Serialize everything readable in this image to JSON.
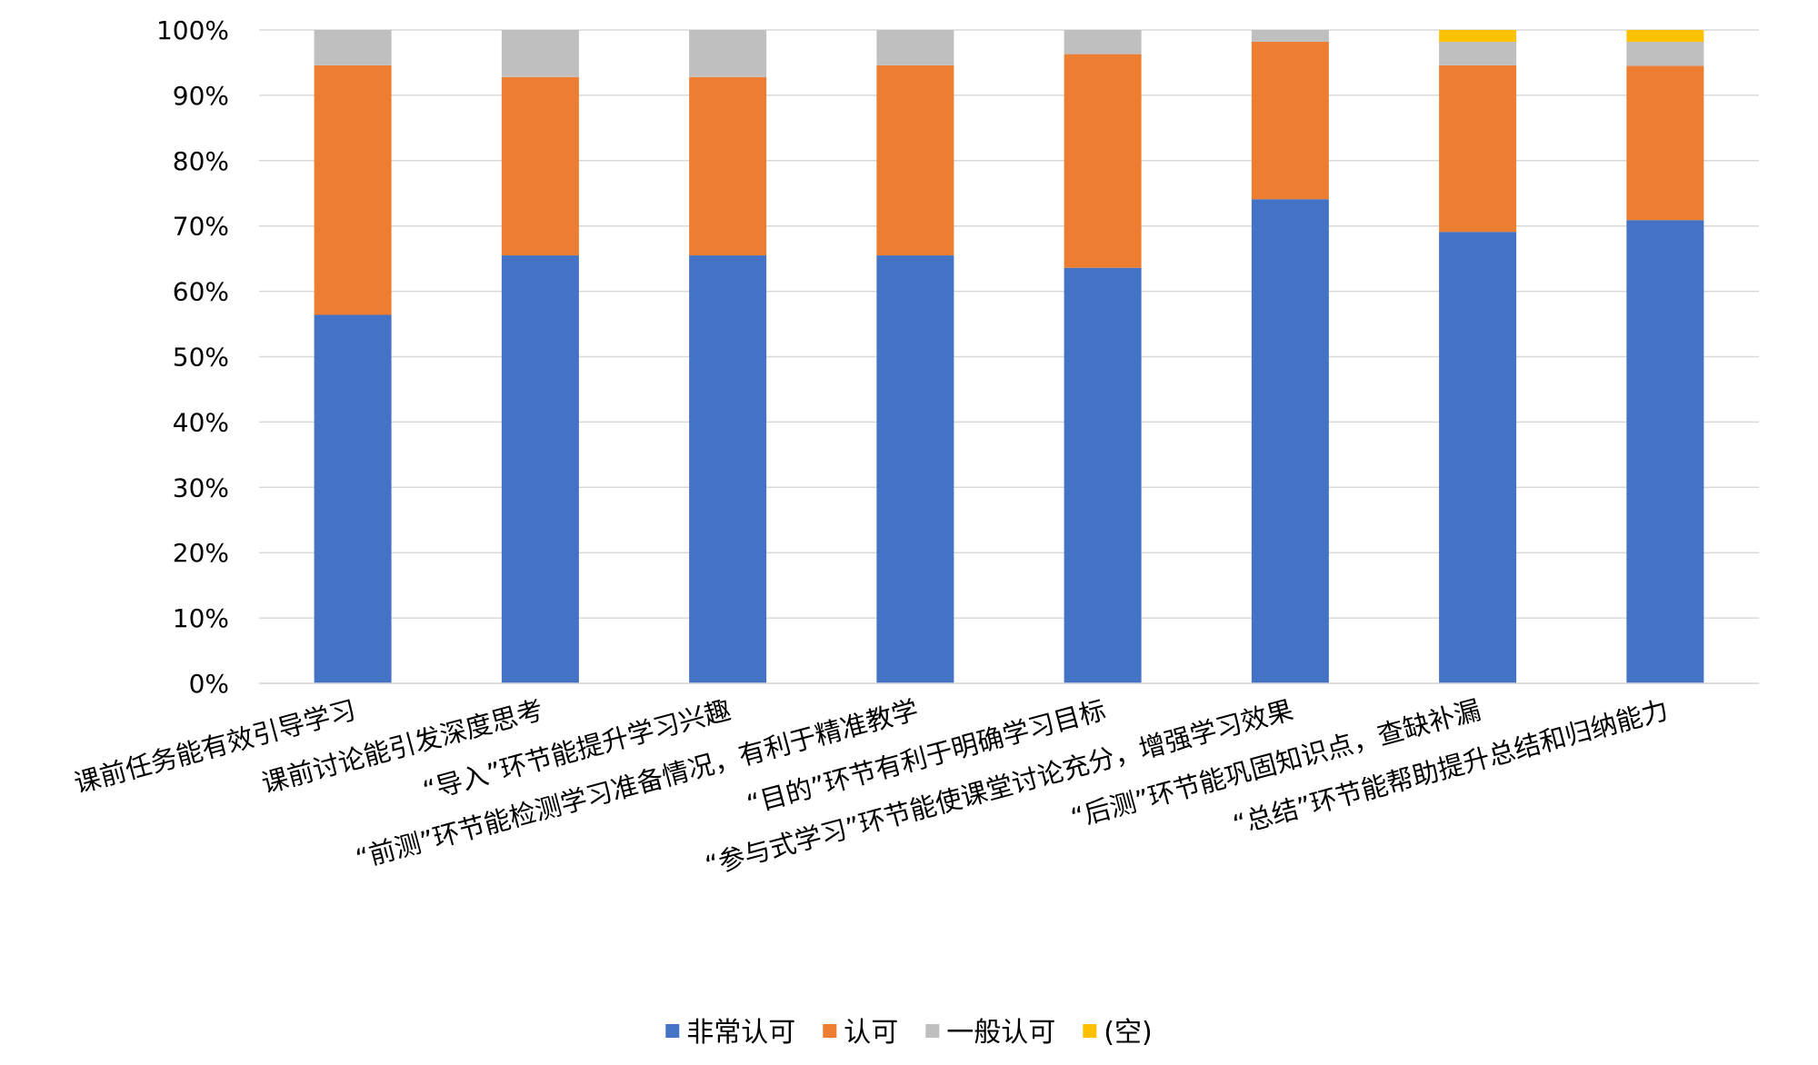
{
  "chart_data": {
    "type": "bar",
    "stacked": true,
    "percent_stacked": true,
    "title": "",
    "xlabel": "",
    "ylabel": "",
    "ylim": [
      0,
      100
    ],
    "y_tick_labels": [
      "0%",
      "10%",
      "20%",
      "30%",
      "40%",
      "50%",
      "60%",
      "70%",
      "80%",
      "90%",
      "100%"
    ],
    "grid": true,
    "legend_position": "bottom",
    "categories": [
      "课前任务能有效引导学习",
      "课前讨论能引发深度思考",
      "“导入”环节能提升学习兴趣",
      "“前测”环节能检测学习准备情况，有利于精准教学",
      "“目的”环节有利于明确学习目标",
      "“参与式学习”环节能使课堂讨论充分，增强学习效果",
      "“后测”环节能巩固知识点，查缺补漏",
      "“总结”环节能帮助提升总结和归纳能力"
    ],
    "series": [
      {
        "name": "非常认可",
        "color": "#4472C4",
        "values": [
          56.4,
          65.5,
          65.5,
          65.5,
          63.6,
          74.1,
          69.1,
          70.9
        ]
      },
      {
        "name": "认可",
        "color": "#ED7D31",
        "values": [
          38.2,
          27.3,
          27.3,
          29.1,
          32.7,
          24.1,
          25.5,
          23.6
        ]
      },
      {
        "name": "一般认可",
        "color": "#BFBFBF",
        "values": [
          5.4,
          7.2,
          7.2,
          5.4,
          3.7,
          1.8,
          3.6,
          3.7
        ]
      },
      {
        "name": "(空)",
        "color": "#FFC000",
        "values": [
          0,
          0,
          0,
          0,
          0,
          0,
          1.8,
          1.8
        ]
      }
    ]
  }
}
